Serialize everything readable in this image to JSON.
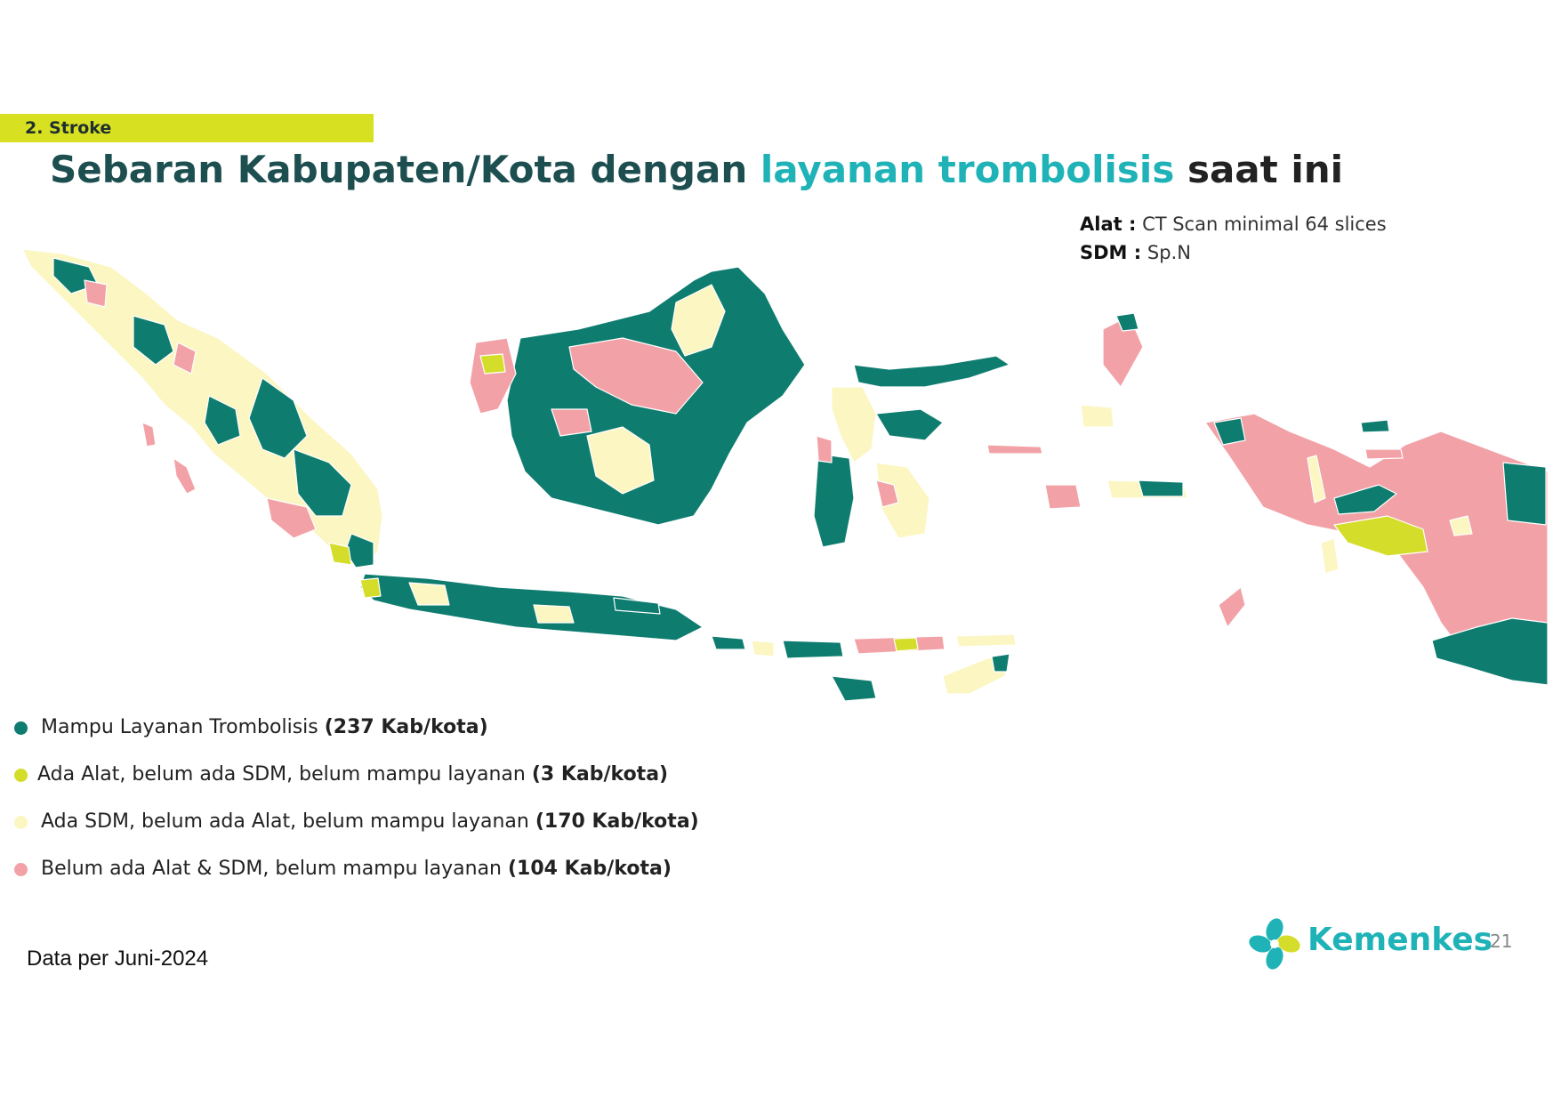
{
  "section": "2. Stroke",
  "title": {
    "part1": "Sebaran Kabupaten/Kota dengan",
    "part2": "layanan trombolisis",
    "part3": "saat ini"
  },
  "specs": {
    "alat_label": "Alat :",
    "alat_value": "CT Scan minimal 64 slices",
    "sdm_label": "SDM :",
    "sdm_value": "Sp.N"
  },
  "legend": [
    {
      "label": "Mampu Layanan Trombolisis",
      "count": "(237 Kab/kota)",
      "color": "#0e7c6f"
    },
    {
      "label": "Ada Alat, belum ada SDM, belum mampu layanan",
      "count": "(3 Kab/kota)",
      "color": "#d4dd2a"
    },
    {
      "label": "Ada SDM, belum ada Alat, belum mampu layanan",
      "count": "(170 Kab/kota)",
      "color": "#fbf6c2"
    },
    {
      "label": "Belum ada Alat & SDM, belum mampu layanan",
      "count": "(104 Kab/kota)",
      "color": "#f2a2a6"
    }
  ],
  "footnote": "Data per Juni-2024",
  "brand": "Kemenkes",
  "page_number": "21"
}
